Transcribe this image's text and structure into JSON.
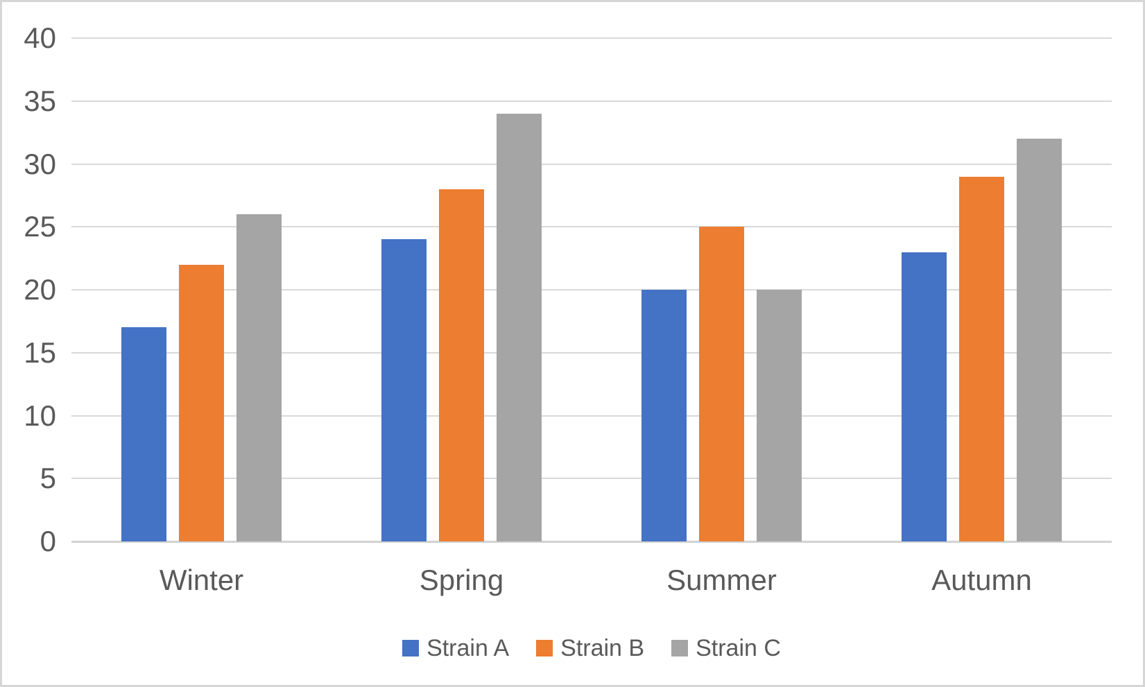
{
  "chart_data": {
    "type": "bar",
    "title": "",
    "categories": [
      "Winter",
      "Spring",
      "Summer",
      "Autumn"
    ],
    "series": [
      {
        "name": "Strain A",
        "color": "#4472C4",
        "values": [
          17,
          24,
          20,
          23
        ]
      },
      {
        "name": "Strain B",
        "color": "#ED7D31",
        "values": [
          22,
          28,
          25,
          29
        ]
      },
      {
        "name": "Strain C",
        "color": "#A5A5A5",
        "values": [
          26,
          34,
          20,
          32
        ]
      }
    ],
    "xlabel": "",
    "ylabel": "",
    "ylim": [
      0,
      40
    ],
    "ytick_step": 5,
    "ytick_labels": [
      "40",
      "35",
      "30",
      "25",
      "20",
      "15",
      "10",
      "5",
      "0"
    ],
    "grid": "horizontal",
    "legend_position": "bottom"
  },
  "colors": {
    "gridline": "#D9D9D9",
    "axis_line": "#D2D2D2",
    "text": "#595959",
    "background": "#FFFFFF",
    "frame_border": "#D6D6D6"
  }
}
